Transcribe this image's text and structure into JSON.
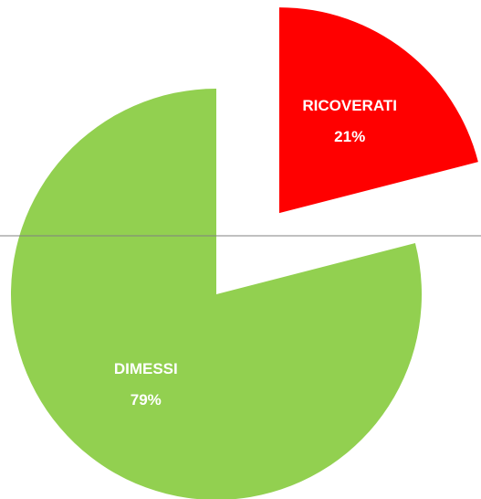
{
  "chart_data": {
    "type": "pie",
    "categories": [
      "RICOVERATI",
      "DIMESSI"
    ],
    "values": [
      21,
      79
    ],
    "value_labels": [
      "21%",
      "79%"
    ],
    "colors": [
      "#ff0000",
      "#92d050"
    ],
    "explode": [
      0.5,
      0
    ]
  }
}
